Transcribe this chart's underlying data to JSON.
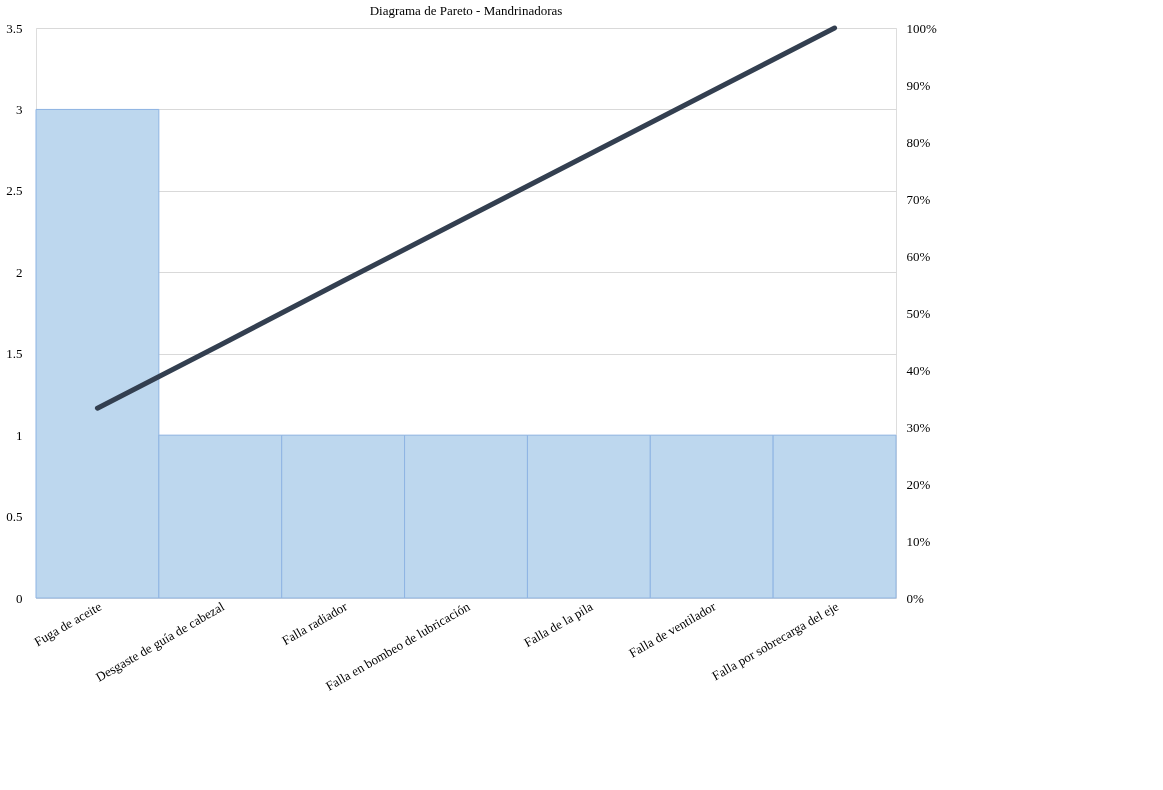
{
  "chart_data": {
    "type": "bar",
    "title": "Diagrama de Pareto - Mandrinadoras",
    "categories": [
      "Fuga de aceite",
      "Desgaste de guía de cabezal",
      "Falla radiador",
      "Falla en bombeo de lubricación",
      "Falla de la pila",
      "Falla de ventilador",
      "Falla por sobrecarga del eje"
    ],
    "series": [
      {
        "color": "#bdd7ee",
        "values": [
          3,
          1,
          1,
          1,
          1,
          1,
          1
        ]
      },
      {
        "type": "line",
        "color": "#333f50",
        "axis": "y2",
        "values": [
          33.3,
          44.4,
          55.6,
          66.7,
          77.8,
          88.9,
          100
        ]
      }
    ],
    "ylim": [
      0,
      3.5
    ],
    "yticks": [
      0,
      0.5,
      1,
      1.5,
      2,
      2.5,
      3,
      3.5
    ],
    "y2lim": [
      0,
      100
    ],
    "y2ticks": [
      {
        "value": 0,
        "label": "0%"
      },
      {
        "value": 10,
        "label": "10%"
      },
      {
        "value": 20,
        "label": "20%"
      },
      {
        "value": 30,
        "label": "30%"
      },
      {
        "value": 40,
        "label": "40%"
      },
      {
        "value": 50,
        "label": "50%"
      },
      {
        "value": 60,
        "label": "60%"
      },
      {
        "value": 70,
        "label": "70%"
      },
      {
        "value": 80,
        "label": "80%"
      },
      {
        "value": 90,
        "label": "90%"
      },
      {
        "value": 100,
        "label": "100%"
      }
    ],
    "grid": "y",
    "marker": "none",
    "line_style": "solid"
  }
}
